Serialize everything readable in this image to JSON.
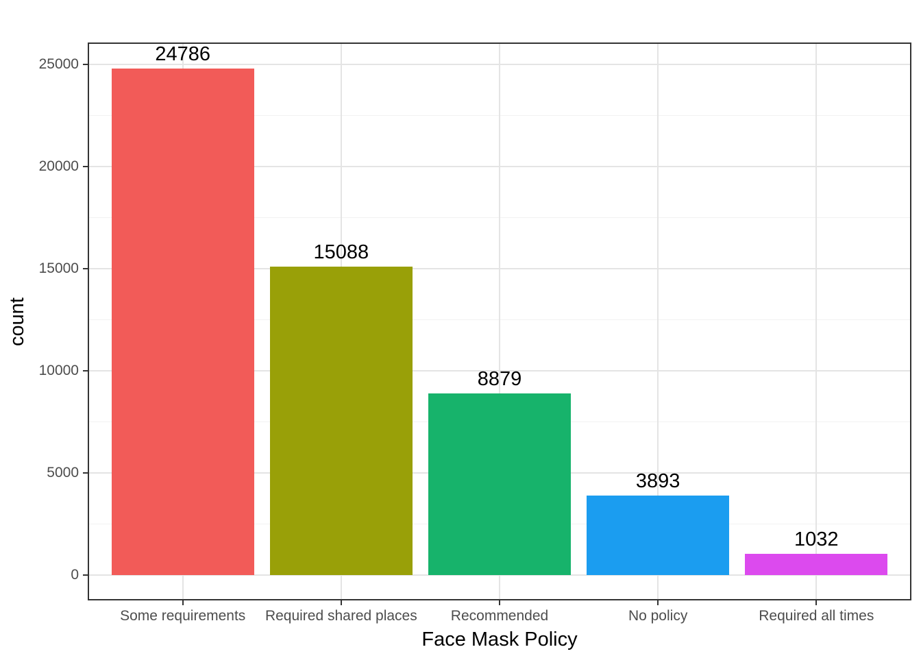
{
  "chart_data": {
    "type": "bar",
    "title": "",
    "xlabel": "Face Mask Policy",
    "ylabel": "count",
    "categories": [
      "Some requirements",
      "Required shared places",
      "Recommended",
      "No policy",
      "Required all times"
    ],
    "values": [
      24786,
      15088,
      8879,
      3893,
      1032
    ],
    "bar_labels": [
      "24786",
      "15088",
      "8879",
      "3893",
      "1032"
    ],
    "bar_colors": [
      "#F25B58",
      "#99A008",
      "#17B36B",
      "#1B9DF0",
      "#DC4AEE"
    ],
    "y_ticks": [
      "0",
      "5000",
      "10000",
      "15000",
      "20000",
      "25000"
    ],
    "y_tick_values": [
      0,
      5000,
      10000,
      15000,
      20000,
      25000
    ],
    "y_minor_values": [
      2500,
      7500,
      12500,
      17500,
      22500
    ],
    "ylim": [
      0,
      25000
    ],
    "grid": "on",
    "legend": "none",
    "colors": {
      "background": "#FFFFFF",
      "panel_background": "#FFFFFF",
      "panel_border": "#333333",
      "grid_major": "#E4E4E4",
      "grid_minor": "#F2F2F2",
      "tick": "#333333",
      "tick_label": "#4D4D4D",
      "text": "#000000"
    }
  }
}
